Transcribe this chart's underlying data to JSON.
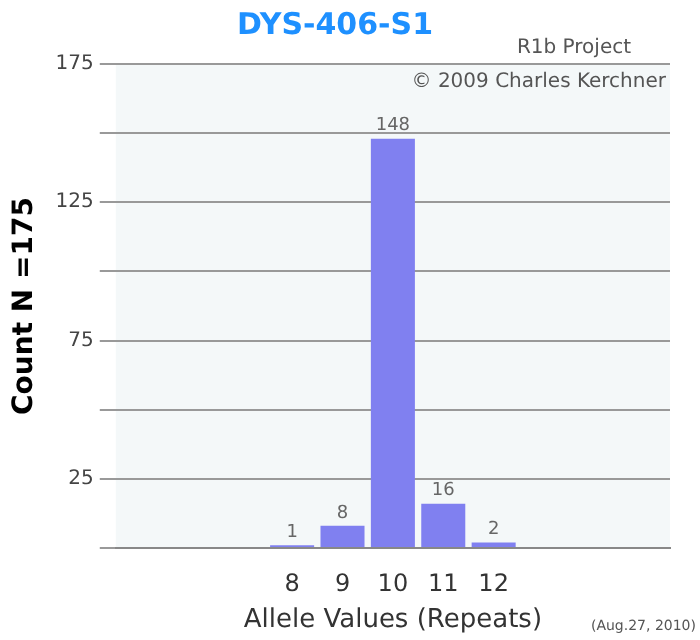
{
  "chart_data": {
    "type": "bar",
    "title": "DYS-406-S1",
    "xlabel": "Allele Values (Repeats)",
    "ylabel": "Count N =175",
    "categories": [
      null,
      null,
      null,
      "8",
      "9",
      "10",
      "11",
      "12",
      null,
      null,
      null
    ],
    "values": [
      null,
      null,
      null,
      1,
      8,
      148,
      16,
      2,
      null,
      null,
      null
    ],
    "color": "#8080f0",
    "ylim": [
      0,
      175
    ],
    "yticks": [
      {
        "value": 0,
        "label": null
      },
      25,
      {
        "value": 50,
        "label": null
      },
      75,
      {
        "value": 100,
        "label": null
      },
      125,
      {
        "value": 150,
        "label": null
      },
      175
    ],
    "grid": "y",
    "legend": false,
    "data_labels": true,
    "annotations": [
      "R1b Project",
      "© 2009 Charles Kerchner",
      "(Aug.27, 2010)"
    ]
  }
}
